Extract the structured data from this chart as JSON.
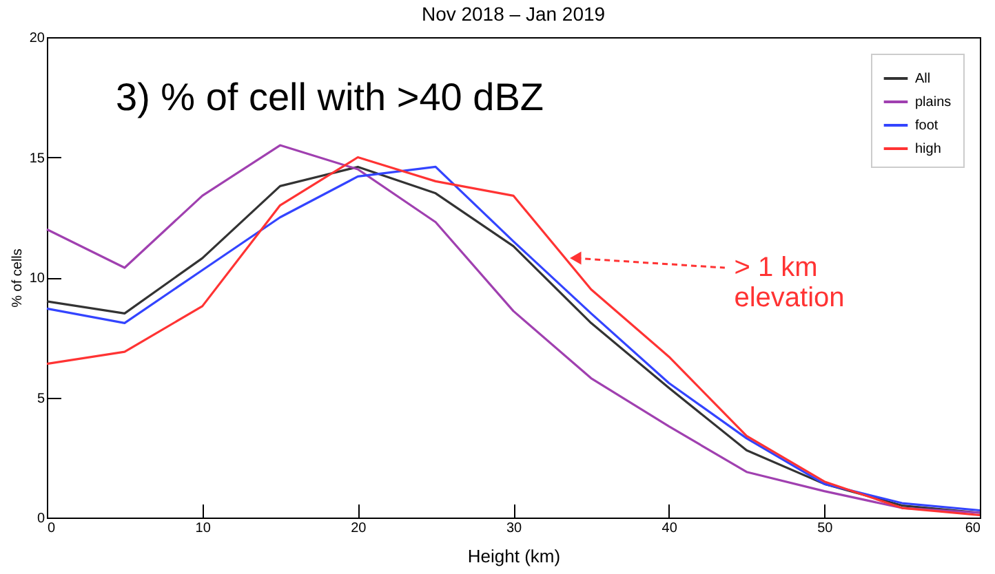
{
  "chart_data": {
    "type": "line",
    "title": "Nov 2018 – Jan 2019",
    "xlabel": "Height (km)",
    "ylabel": "% of cells",
    "x": [
      0,
      5,
      10,
      15,
      20,
      25,
      30,
      35,
      40,
      45,
      50,
      55,
      60
    ],
    "series": [
      {
        "name": "All",
        "color": "#333333",
        "values": [
          9.0,
          8.5,
          10.8,
          13.8,
          14.6,
          13.5,
          11.3,
          8.1,
          5.4,
          2.8,
          1.4,
          0.5,
          0.2
        ]
      },
      {
        "name": "plains",
        "color": "#a040b0",
        "values": [
          12.0,
          10.4,
          13.4,
          15.5,
          14.5,
          12.3,
          8.6,
          5.8,
          3.8,
          1.9,
          1.1,
          0.4,
          0.2
        ]
      },
      {
        "name": "foot",
        "color": "#3344ff",
        "values": [
          8.7,
          8.1,
          10.3,
          12.5,
          14.2,
          14.6,
          11.5,
          8.5,
          5.6,
          3.3,
          1.4,
          0.6,
          0.3
        ]
      },
      {
        "name": "high",
        "color": "#ff3333",
        "values": [
          6.4,
          6.9,
          8.8,
          13.0,
          15.0,
          14.0,
          13.4,
          9.5,
          6.7,
          3.4,
          1.5,
          0.4,
          0.1
        ]
      }
    ],
    "annotations": [
      "3) % of cell with >40 dBZ",
      {
        "text": "> 1 km\nelevation",
        "x": 34,
        "y": 10.8
      }
    ],
    "xlim": [
      0,
      60
    ],
    "xticks": [
      0,
      10,
      20,
      30,
      40,
      50,
      60
    ],
    "ylim": [
      0,
      20
    ],
    "yticks": [
      0,
      5,
      10,
      15,
      20
    ],
    "grid": false,
    "legend": "top right",
    "marker": "none",
    "line_style": "solid"
  }
}
